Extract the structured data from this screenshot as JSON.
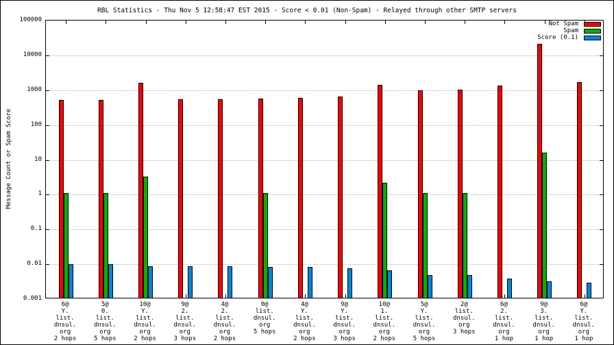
{
  "chart_data": {
    "type": "bar",
    "title": "RBL Statistics - Thu Nov  5 12:58:47 EST 2015 - Score < 0.01 (Non-Spam) - Relayed through other SMTP servers",
    "ylabel": "Message Count or Spam Score",
    "scale": "log",
    "ylim": [
      0.001,
      100000
    ],
    "ytick_labels": [
      "100000",
      "10000",
      "1000",
      "100",
      "10",
      "1",
      "0.1",
      "0.01",
      "0.001"
    ],
    "grid": "horizontal-dotted",
    "legend_position": "top-right",
    "categories": [
      [
        "6@",
        "Y.",
        "list.",
        "dnsul.",
        "org",
        "2 hops"
      ],
      [
        "5@",
        "0.",
        "list.",
        "dnsul.",
        "org",
        "5 hops"
      ],
      [
        "10@",
        "Y.",
        "list.",
        "dnsul.",
        "org",
        "2 hops"
      ],
      [
        "9@",
        "2.",
        "list.",
        "dnsul.",
        "org",
        "3 hops"
      ],
      [
        "4@",
        "2.",
        "list.",
        "dnsul.",
        "org",
        "2 hops"
      ],
      [
        "0@",
        "list.",
        "dnsul.",
        "org",
        "5 hops"
      ],
      [
        "4@",
        "Y.",
        "list.",
        "dnsul.",
        "org",
        "2 hops"
      ],
      [
        "9@",
        "Y.",
        "list.",
        "dnsul.",
        "org",
        "3 hops"
      ],
      [
        "10@",
        "1.",
        "list.",
        "dnsul.",
        "org",
        "2 hops"
      ],
      [
        "5@",
        "Y.",
        "list.",
        "dnsul.",
        "org",
        "5 hops"
      ],
      [
        "2@",
        "list.",
        "dnsul.",
        "org",
        "3 hops"
      ],
      [
        "6@",
        "2.",
        "list.",
        "dnsul.",
        "org",
        "1 hop"
      ],
      [
        "9@",
        "3.",
        "list.",
        "dnsul.",
        "org",
        "1 hop"
      ],
      [
        "6@",
        "Y.",
        "list.",
        "dnsul.",
        "org",
        "1 hop"
      ]
    ],
    "series": [
      {
        "name": "Not Spam",
        "color": "#ff0000",
        "values": [
          470,
          470,
          1500,
          500,
          510,
          520,
          560,
          600,
          1300,
          900,
          950,
          1250,
          20000,
          1550
        ]
      },
      {
        "name": "Spam",
        "color": "#00b400",
        "values": [
          1,
          1,
          3,
          null,
          null,
          1,
          null,
          null,
          2,
          1,
          1,
          null,
          15,
          null
        ]
      },
      {
        "name": "Score (0.1)",
        "color": "#0087dd",
        "values": [
          0.009,
          0.009,
          0.008,
          0.008,
          0.008,
          0.0075,
          0.0075,
          0.007,
          0.006,
          0.0045,
          0.0045,
          0.0035,
          0.003,
          0.0027
        ]
      }
    ]
  }
}
